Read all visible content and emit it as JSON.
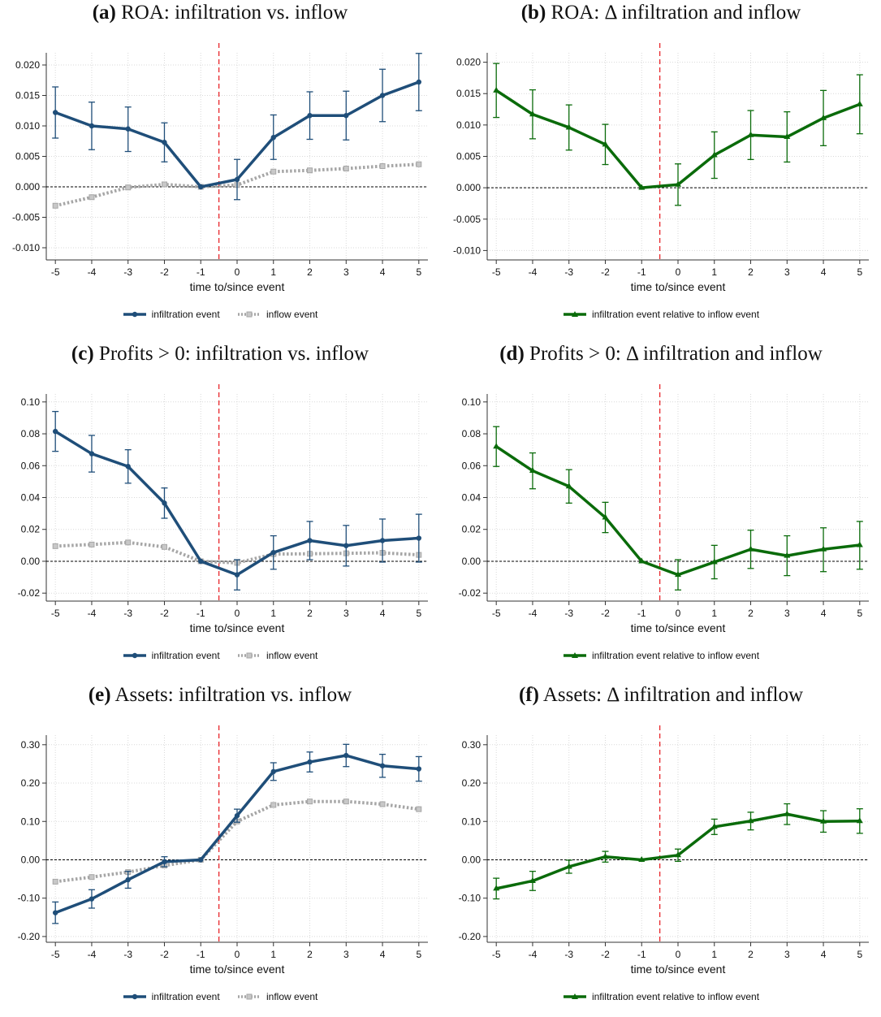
{
  "figure": {
    "colors": {
      "infiltration": "#1f4e79",
      "inflow": "#a6a6a6",
      "delta": "#0a6b0a",
      "event_line": "#e8262a",
      "zero_line": "#000000",
      "grid": "#d9d9d9"
    },
    "legend_two": [
      "infiltration event",
      "inflow event"
    ],
    "legend_one": [
      "infiltration event relative to inflow event"
    ]
  },
  "panels": [
    {
      "tag": "(a)",
      "title": "ROA: infiltration vs. inflow",
      "xlabel": "time to/since event"
    },
    {
      "tag": "(b)",
      "title": "ROA: Δ infiltration and inflow",
      "xlabel": "time to/since event"
    },
    {
      "tag": "(c)",
      "title": "Profits > 0: infiltration vs. inflow",
      "xlabel": "time to/since event"
    },
    {
      "tag": "(d)",
      "title": "Profits > 0: Δ infiltration and inflow",
      "xlabel": "time to/since event"
    },
    {
      "tag": "(e)",
      "title": "Assets: infiltration vs. inflow",
      "xlabel": "time to/since event"
    },
    {
      "tag": "(f)",
      "title": "Assets: Δ infiltration and inflow",
      "xlabel": "time to/since event"
    }
  ],
  "chart_data": [
    {
      "type": "line",
      "title": "(a) ROA: infiltration vs. inflow",
      "xlabel": "time to/since event",
      "ylabel": "",
      "x": [
        -5,
        -4,
        -3,
        -2,
        -1,
        0,
        1,
        2,
        3,
        4,
        5
      ],
      "ylim": [
        -0.012,
        0.022
      ],
      "yticks": [
        0.02,
        0.015,
        0.01,
        0.005,
        0.0,
        -0.005,
        -0.01
      ],
      "ytick_labels": [
        "0.020",
        "0.015",
        "0.010",
        "0.005",
        "0.000",
        "-0.005",
        "-0.010"
      ],
      "event_line_x": -0.5,
      "legend_position": "bottom",
      "series": [
        {
          "name": "infiltration event",
          "style": "solid-circle",
          "color": "#1f4e79",
          "values": [
            0.0122,
            0.01,
            0.0095,
            0.0073,
            0.0,
            0.0012,
            0.0081,
            0.0117,
            0.0117,
            0.015,
            0.0172
          ],
          "ci_low": [
            0.008,
            0.0061,
            0.0058,
            0.0041,
            null,
            -0.0021,
            0.0045,
            0.0078,
            0.0077,
            0.0107,
            0.0125
          ],
          "ci_high": [
            0.0164,
            0.0139,
            0.0131,
            0.0105,
            null,
            0.0045,
            0.0118,
            0.0156,
            0.0157,
            0.0193,
            0.0219
          ]
        },
        {
          "name": "inflow event",
          "style": "dotted-square",
          "color": "#a6a6a6",
          "values": [
            -0.0031,
            -0.0017,
            -0.0001,
            0.0004,
            0.0,
            0.0003,
            0.0025,
            0.0027,
            0.003,
            0.0034,
            0.0037
          ]
        }
      ]
    },
    {
      "type": "line",
      "title": "(b) ROA: Δ infiltration and inflow",
      "xlabel": "time to/since event",
      "ylabel": "",
      "x": [
        -5,
        -4,
        -3,
        -2,
        -1,
        0,
        1,
        2,
        3,
        4,
        5
      ],
      "ylim": [
        -0.0115,
        0.0215
      ],
      "yticks": [
        0.02,
        0.015,
        0.01,
        0.005,
        0.0,
        -0.005,
        -0.01
      ],
      "ytick_labels": [
        "0.020",
        "0.015",
        "0.010",
        "0.005",
        "0.000",
        "-0.005",
        "-0.010"
      ],
      "event_line_x": -0.5,
      "legend_position": "bottom",
      "series": [
        {
          "name": "infiltration event relative to inflow event",
          "style": "solid-triangle",
          "color": "#0a6b0a",
          "values": [
            0.0155,
            0.0117,
            0.0096,
            0.0069,
            0.0,
            0.0005,
            0.0052,
            0.0084,
            0.0081,
            0.0111,
            0.0133
          ],
          "ci_low": [
            0.0112,
            0.0078,
            0.006,
            0.0037,
            null,
            -0.0028,
            0.0015,
            0.0045,
            0.0041,
            0.0067,
            0.0086
          ],
          "ci_high": [
            0.0198,
            0.0156,
            0.0132,
            0.0101,
            null,
            0.0038,
            0.0089,
            0.0123,
            0.0121,
            0.0155,
            0.018
          ]
        }
      ]
    },
    {
      "type": "line",
      "title": "(c) Profits > 0: infiltration vs. inflow",
      "xlabel": "time to/since event",
      "ylabel": "",
      "x": [
        -5,
        -4,
        -3,
        -2,
        -1,
        0,
        1,
        2,
        3,
        4,
        5
      ],
      "ylim": [
        -0.025,
        0.105
      ],
      "yticks": [
        0.1,
        0.08,
        0.06,
        0.04,
        0.02,
        0.0,
        -0.02
      ],
      "ytick_labels": [
        "0.10",
        "0.08",
        "0.06",
        "0.04",
        "0.02",
        "0.00",
        "-0.02"
      ],
      "event_line_x": -0.5,
      "legend_position": "bottom",
      "series": [
        {
          "name": "infiltration event",
          "style": "solid-circle",
          "color": "#1f4e79",
          "values": [
            0.0815,
            0.0675,
            0.0595,
            0.0365,
            0.0,
            -0.0085,
            0.0055,
            0.013,
            0.0098,
            0.013,
            0.0145
          ],
          "ci_low": [
            0.069,
            0.056,
            0.049,
            0.027,
            null,
            -0.018,
            -0.005,
            0.001,
            -0.003,
            -0.0005,
            -0.0005
          ],
          "ci_high": [
            0.094,
            0.079,
            0.07,
            0.046,
            null,
            0.001,
            0.016,
            0.025,
            0.0225,
            0.0265,
            0.0295
          ]
        },
        {
          "name": "inflow event",
          "style": "dotted-square",
          "color": "#a6a6a6",
          "values": [
            0.0095,
            0.0105,
            0.0118,
            0.009,
            0.0,
            -0.001,
            0.0045,
            0.0047,
            0.005,
            0.0053,
            0.004
          ]
        }
      ]
    },
    {
      "type": "line",
      "title": "(d) Profits > 0: Δ infiltration and inflow",
      "xlabel": "time to/since event",
      "ylabel": "",
      "x": [
        -5,
        -4,
        -3,
        -2,
        -1,
        0,
        1,
        2,
        3,
        4,
        5
      ],
      "ylim": [
        -0.025,
        0.105
      ],
      "yticks": [
        0.1,
        0.08,
        0.06,
        0.04,
        0.02,
        0.0,
        -0.02
      ],
      "ytick_labels": [
        "0.10",
        "0.08",
        "0.06",
        "0.04",
        "0.02",
        "0.00",
        "-0.02"
      ],
      "event_line_x": -0.5,
      "legend_position": "bottom",
      "series": [
        {
          "name": "infiltration event relative to inflow event",
          "style": "solid-triangle",
          "color": "#0a6b0a",
          "values": [
            0.072,
            0.0568,
            0.047,
            0.0275,
            0.0,
            -0.0085,
            -0.0005,
            0.0075,
            0.0035,
            0.0075,
            0.0102
          ],
          "ci_low": [
            0.0595,
            0.0455,
            0.0365,
            0.018,
            null,
            -0.018,
            -0.011,
            -0.0045,
            -0.009,
            -0.0065,
            -0.005
          ],
          "ci_high": [
            0.0845,
            0.068,
            0.0575,
            0.037,
            null,
            0.001,
            0.01,
            0.0195,
            0.016,
            0.021,
            0.025
          ]
        }
      ]
    },
    {
      "type": "line",
      "title": "(e) Assets: infiltration vs. inflow",
      "xlabel": "time to/since event",
      "ylabel": "",
      "x": [
        -5,
        -4,
        -3,
        -2,
        -1,
        0,
        1,
        2,
        3,
        4,
        5
      ],
      "ylim": [
        -0.215,
        0.325
      ],
      "yticks": [
        0.3,
        0.2,
        0.1,
        0.0,
        -0.1,
        -0.2
      ],
      "ytick_labels": [
        "0.30",
        "0.20",
        "0.10",
        "0.00",
        "-0.10",
        "-0.20"
      ],
      "event_line_x": -0.5,
      "legend_position": "bottom",
      "series": [
        {
          "name": "infiltration event",
          "style": "solid-circle",
          "color": "#1f4e79",
          "values": [
            -0.138,
            -0.102,
            -0.052,
            -0.005,
            0.0,
            0.115,
            0.23,
            0.255,
            0.272,
            0.245,
            0.237
          ],
          "ci_low": [
            -0.166,
            -0.126,
            -0.074,
            -0.018,
            null,
            0.098,
            0.207,
            0.229,
            0.243,
            0.215,
            0.205
          ],
          "ci_high": [
            -0.11,
            -0.078,
            -0.03,
            0.008,
            null,
            0.132,
            0.253,
            0.281,
            0.301,
            0.275,
            0.269
          ]
        },
        {
          "name": "inflow event",
          "style": "dotted-square",
          "color": "#a6a6a6",
          "values": [
            -0.057,
            -0.045,
            -0.032,
            -0.015,
            0.0,
            0.1,
            0.143,
            0.152,
            0.152,
            0.145,
            0.132
          ]
        }
      ]
    },
    {
      "type": "line",
      "title": "(f) Assets: Δ infiltration and inflow",
      "xlabel": "time to/since event",
      "ylabel": "",
      "x": [
        -5,
        -4,
        -3,
        -2,
        -1,
        0,
        1,
        2,
        3,
        4,
        5
      ],
      "ylim": [
        -0.215,
        0.325
      ],
      "yticks": [
        0.3,
        0.2,
        0.1,
        0.0,
        -0.1,
        -0.2
      ],
      "ytick_labels": [
        "0.30",
        "0.20",
        "0.10",
        "0.00",
        "-0.10",
        "-0.20"
      ],
      "event_line_x": -0.5,
      "legend_position": "bottom",
      "series": [
        {
          "name": "infiltration event relative to inflow event",
          "style": "solid-triangle",
          "color": "#0a6b0a",
          "values": [
            -0.075,
            -0.055,
            -0.018,
            0.008,
            0.0,
            0.012,
            0.086,
            0.101,
            0.119,
            0.1,
            0.101
          ],
          "ci_low": [
            -0.102,
            -0.08,
            -0.035,
            -0.006,
            null,
            -0.004,
            0.066,
            0.078,
            0.092,
            0.072,
            0.069
          ],
          "ci_high": [
            -0.048,
            -0.03,
            -0.001,
            0.022,
            null,
            0.028,
            0.106,
            0.124,
            0.146,
            0.128,
            0.133
          ]
        }
      ]
    }
  ]
}
